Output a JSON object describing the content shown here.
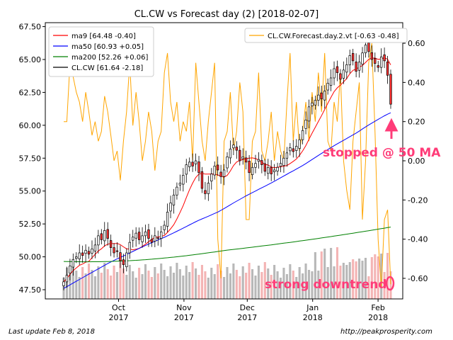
{
  "chart_data": {
    "type": "candlestick",
    "title": "CL.CW vs Forecast day (2)  [2018-02-07]",
    "xlabel": "",
    "ylabel": "",
    "ylim": [
      46.8,
      67.8
    ],
    "y2lim": [
      -0.705,
      0.705
    ],
    "y_ticks": [
      "47.50",
      "50.00",
      "52.50",
      "55.00",
      "57.50",
      "60.00",
      "62.50",
      "65.00",
      "67.50"
    ],
    "y2_ticks": [
      "-0.60",
      "-0.40",
      "-0.20",
      "0.00",
      "0.20",
      "0.40",
      "0.60"
    ],
    "x_ticks": [
      {
        "label": "Oct",
        "year": "2017",
        "date": "2017-10-01"
      },
      {
        "label": "Nov",
        "year": "2017",
        "date": "2017-11-01"
      },
      {
        "label": "Dec",
        "year": "2017",
        "date": "2017-12-01"
      },
      {
        "label": "Jan",
        "year": "2018",
        "date": "2018-01-01"
      },
      {
        "label": "Feb",
        "year": "2018",
        "date": "2018-02-01"
      }
    ],
    "grid": false,
    "legend_left": {
      "placement": "top-left",
      "entries": [
        {
          "label": "ma9 [64.48 -0.40]",
          "color": "#ff0000"
        },
        {
          "label": "ma50 [60.93 +0.05]",
          "color": "#0000ff"
        },
        {
          "label": "ma200 [52.26 +0.06]",
          "color": "#008000"
        },
        {
          "label": "CL.CW [61.64 -2.18]",
          "color": "#000000"
        }
      ]
    },
    "legend_right": {
      "placement": "top-right",
      "entries": [
        {
          "label": "CL.CW.Forecast.day.2.vt [-0.63 -0.48]",
          "color": "#ffa500"
        }
      ]
    },
    "annotations": [
      {
        "text": "stopped @ 50 MA",
        "color": "#ff3c78",
        "at": "2018-02-07"
      },
      {
        "text": "strong downtrend",
        "color": "#ff3c78"
      }
    ],
    "close": [
      48.1,
      48.6,
      49.3,
      49.8,
      50.0,
      50.3,
      50.1,
      50.5,
      50.2,
      50.6,
      50.9,
      51.6,
      51.3,
      52.0,
      51.4,
      50.7,
      50.3,
      50.4,
      49.7,
      49.4,
      50.3,
      51.1,
      51.5,
      51.8,
      51.3,
      51.6,
      51.9,
      51.4,
      51.1,
      51.6,
      51.4,
      51.9,
      52.4,
      53.4,
      54.1,
      54.7,
      55.3,
      55.6,
      56.2,
      57.0,
      57.2,
      56.9,
      57.3,
      56.4,
      55.2,
      54.8,
      55.6,
      56.3,
      56.9,
      56.6,
      56.1,
      56.6,
      57.6,
      58.2,
      58.5,
      58.1,
      57.3,
      57.6,
      57.2,
      56.4,
      56.8,
      57.1,
      57.4,
      57.0,
      56.5,
      56.8,
      56.3,
      56.6,
      56.8,
      57.1,
      57.5,
      57.9,
      58.3,
      58.0,
      58.4,
      58.9,
      59.6,
      60.4,
      61.4,
      61.7,
      61.9,
      62.3,
      62.0,
      62.6,
      63.2,
      63.6,
      64.3,
      64.0,
      63.5,
      64.2,
      64.6,
      65.3,
      64.9,
      64.1,
      64.8,
      65.5,
      66.1,
      65.6,
      65.0,
      64.7,
      64.4,
      65.2,
      64.9,
      63.8,
      61.6
    ],
    "forecast": [
      0.2,
      0.2,
      0.5,
      0.43,
      0.35,
      0.3,
      0.2,
      0.35,
      0.25,
      0.13,
      0.2,
      0.1,
      0.15,
      0.33,
      0.25,
      0.13,
      0.0,
      0.05,
      -0.1,
      0.1,
      0.25,
      0.5,
      0.18,
      0.35,
      0.2,
      0.0,
      0.1,
      0.25,
      0.15,
      -0.05,
      0.1,
      0.15,
      0.45,
      0.55,
      0.3,
      0.2,
      0.3,
      0.1,
      0.2,
      0.15,
      0.3,
      0.0,
      0.5,
      0.3,
      0.1,
      0.0,
      0.2,
      0.35,
      0.5,
      -0.4,
      -0.6,
      0.1,
      0.15,
      0.35,
      0.05,
      0.15,
      0.4,
      0.25,
      -0.3,
      -0.3,
      0.1,
      0.15,
      0.45,
      0.05,
      0.0,
      0.1,
      0.25,
      0.0,
      0.15,
      0.05,
      0.0,
      0.3,
      0.55,
      0.1,
      0.3,
      0.05,
      0.15,
      0.3,
      0.1,
      0.35,
      0.2,
      0.45,
      0.25,
      0.55,
      0.1,
      0.05,
      0.3,
      0.2,
      0.45,
      0.0,
      -0.15,
      -0.25,
      0.1,
      0.25,
      0.4,
      -0.3,
      0.0,
      0.5,
      0.6,
      0.15,
      -0.4,
      -0.65,
      -0.3,
      -0.25,
      -0.63
    ],
    "ma9_endpoints": {
      "first": 47.9,
      "last": 64.48
    },
    "ma50_endpoints": {
      "first": 47.6,
      "last": 60.93
    },
    "ma200_endpoints": {
      "first": 49.65,
      "last": 52.26
    }
  },
  "footer": {
    "left": "Last update Feb  8, 2018",
    "right": "http://peakprosperity.com"
  }
}
